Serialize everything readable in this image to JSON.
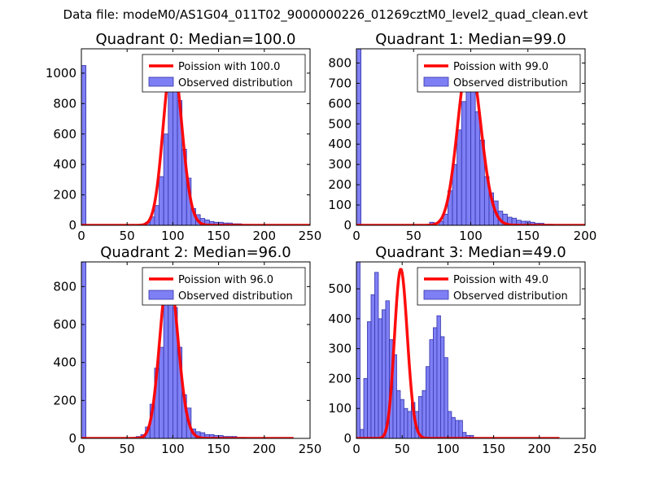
{
  "figure": {
    "suptitle": "Data file: modeM0/AS1G04_011T02_9000000226_01269cztM0_level2_quad_clean.evt",
    "colors": {
      "bar_fill": "#7f7ff5",
      "bar_edge": "#3333aa",
      "line": "#ff0000"
    }
  },
  "chart_data": [
    {
      "type": "bar",
      "title": "Quadrant 0: Median=100.0",
      "median": 100.0,
      "xlim": [
        0,
        250
      ],
      "ylim": [
        0,
        1160
      ],
      "xticks": [
        0,
        50,
        100,
        150,
        200,
        250
      ],
      "yticks": [
        0,
        200,
        400,
        600,
        800,
        1000
      ],
      "legend": {
        "line_label": "Poission with 100.0",
        "bar_label": "Observed distribution",
        "loc": "upper-right"
      },
      "bin_width": 5,
      "bins": [
        {
          "x": 0,
          "y": 1050
        },
        {
          "x": 65,
          "y": 5
        },
        {
          "x": 70,
          "y": 20
        },
        {
          "x": 75,
          "y": 55
        },
        {
          "x": 80,
          "y": 130
        },
        {
          "x": 85,
          "y": 320
        },
        {
          "x": 90,
          "y": 600
        },
        {
          "x": 95,
          "y": 900
        },
        {
          "x": 100,
          "y": 1020
        },
        {
          "x": 105,
          "y": 820
        },
        {
          "x": 110,
          "y": 500
        },
        {
          "x": 115,
          "y": 310
        },
        {
          "x": 120,
          "y": 110
        },
        {
          "x": 125,
          "y": 70
        },
        {
          "x": 130,
          "y": 45
        },
        {
          "x": 135,
          "y": 35
        },
        {
          "x": 140,
          "y": 25
        },
        {
          "x": 145,
          "y": 20
        },
        {
          "x": 150,
          "y": 20
        },
        {
          "x": 155,
          "y": 15
        },
        {
          "x": 160,
          "y": 15
        },
        {
          "x": 165,
          "y": 10
        },
        {
          "x": 170,
          "y": 10
        },
        {
          "x": 175,
          "y": 5
        },
        {
          "x": 180,
          "y": 5
        }
      ],
      "poisson": {
        "lambda": 100.0,
        "scale": 1100,
        "x_end": 250
      }
    },
    {
      "type": "bar",
      "title": "Quadrant 1: Median=99.0",
      "median": 99.0,
      "xlim": [
        0,
        200
      ],
      "ylim": [
        0,
        870
      ],
      "xticks": [
        0,
        50,
        100,
        150,
        200
      ],
      "yticks": [
        0,
        100,
        200,
        300,
        400,
        500,
        600,
        700,
        800
      ],
      "legend": {
        "line_label": "Poission with 99.0",
        "bar_label": "Observed distribution",
        "loc": "upper-right"
      },
      "bin_width": 4,
      "bins": [
        {
          "x": 0,
          "y": 870
        },
        {
          "x": 64,
          "y": 15
        },
        {
          "x": 72,
          "y": 20
        },
        {
          "x": 76,
          "y": 55
        },
        {
          "x": 80,
          "y": 170
        },
        {
          "x": 84,
          "y": 300
        },
        {
          "x": 88,
          "y": 470
        },
        {
          "x": 92,
          "y": 610
        },
        {
          "x": 96,
          "y": 770
        },
        {
          "x": 100,
          "y": 730
        },
        {
          "x": 104,
          "y": 560
        },
        {
          "x": 108,
          "y": 420
        },
        {
          "x": 112,
          "y": 240
        },
        {
          "x": 116,
          "y": 160
        },
        {
          "x": 120,
          "y": 120
        },
        {
          "x": 124,
          "y": 70
        },
        {
          "x": 128,
          "y": 55
        },
        {
          "x": 132,
          "y": 40
        },
        {
          "x": 136,
          "y": 35
        },
        {
          "x": 140,
          "y": 25
        },
        {
          "x": 144,
          "y": 20
        },
        {
          "x": 148,
          "y": 20
        },
        {
          "x": 152,
          "y": 15
        },
        {
          "x": 156,
          "y": 10
        },
        {
          "x": 160,
          "y": 10
        },
        {
          "x": 164,
          "y": 5
        },
        {
          "x": 168,
          "y": 5
        }
      ],
      "poisson": {
        "lambda": 99.0,
        "scale": 830,
        "x_end": 200
      }
    },
    {
      "type": "bar",
      "title": "Quadrant 2: Median=96.0",
      "median": 96.0,
      "xlim": [
        0,
        250
      ],
      "ylim": [
        0,
        930
      ],
      "xticks": [
        0,
        50,
        100,
        150,
        200,
        250
      ],
      "yticks": [
        0,
        200,
        400,
        600,
        800
      ],
      "legend": {
        "line_label": "Poission with 96.0",
        "bar_label": "Observed distribution",
        "loc": "upper-right"
      },
      "bin_width": 5,
      "bins": [
        {
          "x": 0,
          "y": 930
        },
        {
          "x": 55,
          "y": 5
        },
        {
          "x": 60,
          "y": 10
        },
        {
          "x": 65,
          "y": 20
        },
        {
          "x": 70,
          "y": 60
        },
        {
          "x": 75,
          "y": 180
        },
        {
          "x": 80,
          "y": 370
        },
        {
          "x": 85,
          "y": 480
        },
        {
          "x": 90,
          "y": 890
        },
        {
          "x": 95,
          "y": 850
        },
        {
          "x": 100,
          "y": 690
        },
        {
          "x": 105,
          "y": 480
        },
        {
          "x": 110,
          "y": 230
        },
        {
          "x": 115,
          "y": 160
        },
        {
          "x": 120,
          "y": 50
        },
        {
          "x": 125,
          "y": 35
        },
        {
          "x": 130,
          "y": 30
        },
        {
          "x": 135,
          "y": 20
        },
        {
          "x": 140,
          "y": 20
        },
        {
          "x": 145,
          "y": 15
        },
        {
          "x": 150,
          "y": 15
        },
        {
          "x": 155,
          "y": 10
        },
        {
          "x": 160,
          "y": 10
        },
        {
          "x": 165,
          "y": 10
        },
        {
          "x": 170,
          "y": 5
        },
        {
          "x": 175,
          "y": 5
        }
      ],
      "poisson": {
        "lambda": 96.0,
        "scale": 880,
        "x_end": 232
      }
    },
    {
      "type": "bar",
      "title": "Quadrant 3: Median=49.0",
      "median": 49.0,
      "xlim": [
        0,
        250
      ],
      "ylim": [
        0,
        590
      ],
      "xticks": [
        0,
        50,
        100,
        150,
        200,
        250
      ],
      "yticks": [
        0,
        100,
        200,
        300,
        400,
        500
      ],
      "legend": {
        "line_label": "Poission with 49.0",
        "bar_label": "Observed distribution",
        "loc": "upper-right"
      },
      "bin_width": 4,
      "bins": [
        {
          "x": 0,
          "y": 590
        },
        {
          "x": 4,
          "y": 30
        },
        {
          "x": 8,
          "y": 200
        },
        {
          "x": 12,
          "y": 390
        },
        {
          "x": 16,
          "y": 480
        },
        {
          "x": 20,
          "y": 555
        },
        {
          "x": 24,
          "y": 400
        },
        {
          "x": 28,
          "y": 430
        },
        {
          "x": 32,
          "y": 460
        },
        {
          "x": 36,
          "y": 330
        },
        {
          "x": 40,
          "y": 280
        },
        {
          "x": 44,
          "y": 160
        },
        {
          "x": 48,
          "y": 130
        },
        {
          "x": 52,
          "y": 100
        },
        {
          "x": 56,
          "y": 90
        },
        {
          "x": 60,
          "y": 120
        },
        {
          "x": 64,
          "y": 90
        },
        {
          "x": 68,
          "y": 140
        },
        {
          "x": 72,
          "y": 160
        },
        {
          "x": 76,
          "y": 240
        },
        {
          "x": 80,
          "y": 330
        },
        {
          "x": 84,
          "y": 370
        },
        {
          "x": 88,
          "y": 410
        },
        {
          "x": 92,
          "y": 340
        },
        {
          "x": 96,
          "y": 270
        },
        {
          "x": 100,
          "y": 90
        },
        {
          "x": 104,
          "y": 70
        },
        {
          "x": 108,
          "y": 60
        },
        {
          "x": 112,
          "y": 60
        },
        {
          "x": 116,
          "y": 20
        },
        {
          "x": 120,
          "y": 10
        },
        {
          "x": 124,
          "y": 10
        }
      ],
      "poisson": {
        "lambda": 49.0,
        "scale": 565,
        "x_end": 222
      }
    }
  ]
}
